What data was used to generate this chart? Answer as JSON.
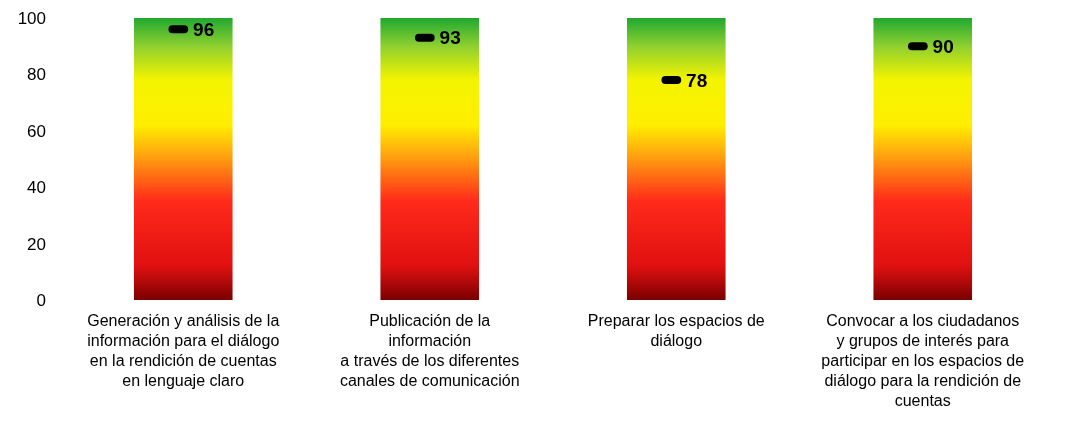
{
  "chart_data": {
    "type": "bar",
    "categories": [
      "Generación y análisis de la\ninformación para el diálogo\nen la rendición de cuentas\nen lenguaje claro",
      "Publicación de la\ninformación\na través de los diferentes\ncanales de comunicación",
      "Preparar los espacios de\ndiálogo",
      "Convocar a los ciudadanos\ny grupos de interés para\nparticipar en los espacios de\ndiálogo para la rendición de\ncuentas"
    ],
    "series": [
      {
        "values": [
          100,
          100,
          100,
          100
        ]
      },
      {
        "type": "scatter",
        "color": "#000000",
        "values": [
          96,
          93,
          78,
          90
        ],
        "value_labels": [
          "96",
          "93",
          "78",
          "90"
        ]
      }
    ],
    "ylim": [
      0,
      100
    ],
    "yticks": [
      0,
      20,
      40,
      60,
      80,
      100
    ],
    "grid": false
  }
}
